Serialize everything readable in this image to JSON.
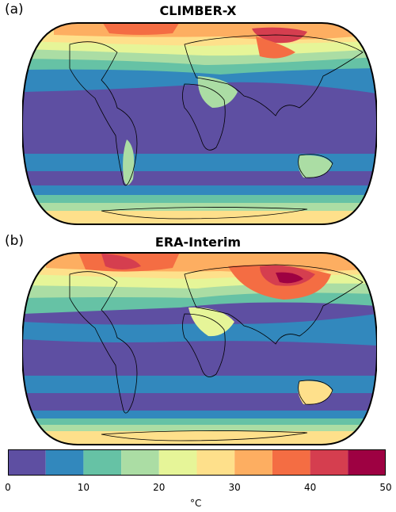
{
  "panels": [
    {
      "label": "(a)",
      "title": "CLIMBER-X"
    },
    {
      "label": "(b)",
      "title": "ERA-Interim"
    }
  ],
  "colorbar": {
    "bounds": [
      0,
      5,
      10,
      15,
      20,
      25,
      30,
      35,
      40,
      45,
      50
    ],
    "colors": [
      "#5e4fa2",
      "#3288bd",
      "#66c2a5",
      "#abdda4",
      "#e6f598",
      "#fee08b",
      "#fdae61",
      "#f46d43",
      "#d53e4f",
      "#9e0142"
    ],
    "tick_labels": [
      "0",
      "10",
      "20",
      "30",
      "40",
      "50"
    ],
    "unit": "°C"
  }
}
